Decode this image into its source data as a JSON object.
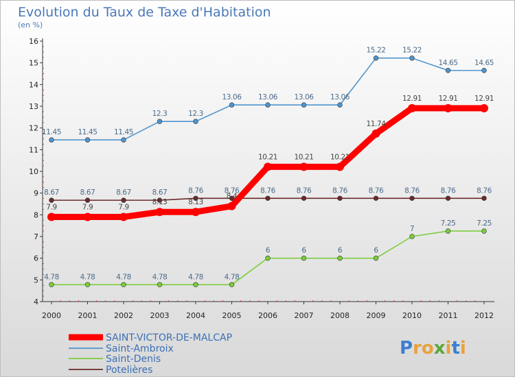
{
  "chart_data": {
    "type": "line",
    "title": "Evolution du Taux de Taxe d'Habitation",
    "subtitle": "(en %)",
    "x": [
      "2000",
      "2001",
      "2002",
      "2003",
      "2004",
      "2005",
      "2006",
      "2007",
      "2008",
      "2009",
      "2010",
      "2011",
      "2012"
    ],
    "ylim": [
      4,
      16
    ],
    "yticks": [
      "4",
      "5",
      "6",
      "7",
      "8",
      "9",
      "10",
      "11",
      "12",
      "13",
      "14",
      "15",
      "16"
    ],
    "grid": "off",
    "legend_position": "bottom-left",
    "series": [
      {
        "name": "SAINT-VICTOR-DE-MALCAP",
        "color": "#ff0000",
        "values": [
          7.9,
          7.9,
          7.9,
          8.13,
          8.13,
          8.4,
          10.21,
          10.21,
          10.21,
          11.74,
          12.91,
          12.91,
          12.91
        ],
        "labels": [
          "7.9",
          "7.9",
          "7.9",
          "8.13",
          "8.13",
          "8.4",
          "10.21",
          "10.21",
          "10.21",
          "11.74",
          "12.91",
          "12.91",
          "12.91"
        ]
      },
      {
        "name": "Saint-Ambroix",
        "color": "#4f94cd",
        "values": [
          11.45,
          11.45,
          11.45,
          12.3,
          12.3,
          13.06,
          13.06,
          13.06,
          13.06,
          15.22,
          15.22,
          14.65,
          14.65
        ],
        "labels": [
          "11.45",
          "11.45",
          "11.45",
          "12.3",
          "12.3",
          "13.06",
          "13.06",
          "13.06",
          "13.06",
          "15.22",
          "15.22",
          "14.65",
          "14.65"
        ]
      },
      {
        "name": "Saint-Denis",
        "color": "#7ccd3c",
        "values": [
          4.78,
          4.78,
          4.78,
          4.78,
          4.78,
          4.78,
          6,
          6,
          6,
          6,
          7,
          7.25,
          7.25
        ],
        "labels": [
          "4.78",
          "4.78",
          "4.78",
          "4.78",
          "4.78",
          "4.78",
          "6",
          "6",
          "6",
          "6",
          "7",
          "7.25",
          "7.25"
        ]
      },
      {
        "name": "Potelières",
        "color": "#6b2a2a",
        "values": [
          8.67,
          8.67,
          8.67,
          8.67,
          8.76,
          8.76,
          8.76,
          8.76,
          8.76,
          8.76,
          8.76,
          8.76,
          8.76
        ],
        "labels": [
          "8.67",
          "8.67",
          "8.67",
          "8.67",
          "8.76",
          "8.76",
          "8.76",
          "8.76",
          "8.76",
          "8.76",
          "8.76",
          "8.76",
          "8.76"
        ]
      }
    ]
  },
  "logo": {
    "text": "Proxiti"
  }
}
